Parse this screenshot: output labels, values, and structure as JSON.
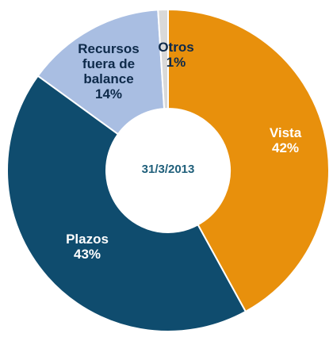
{
  "chart_data": {
    "type": "donut",
    "center_label": "31/3/2013",
    "categories": [
      "Vista",
      "Plazos",
      "Recursos fuera de balance",
      "Otros"
    ],
    "values": [
      42,
      43,
      14,
      1
    ],
    "value_labels": [
      "42%",
      "43%",
      "14%",
      "1%"
    ],
    "colors": [
      "#E8900C",
      "#0F4C6E",
      "#A9BEE2",
      "#D9D9D9"
    ]
  }
}
